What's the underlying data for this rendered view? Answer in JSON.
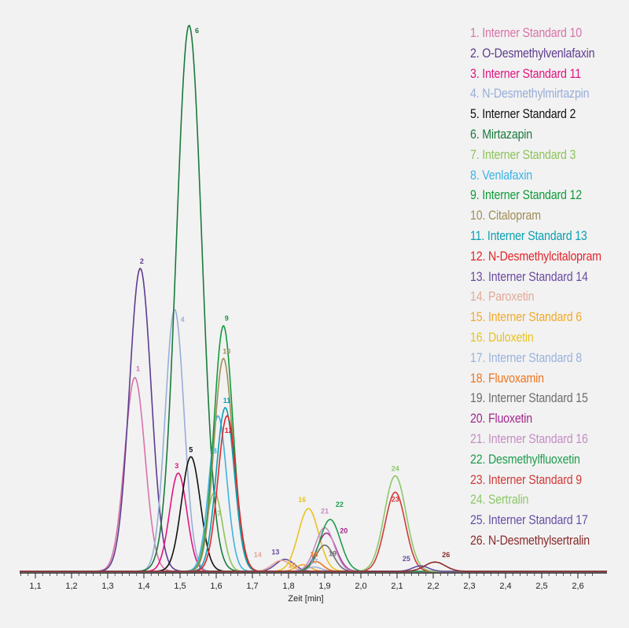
{
  "chart_data": {
    "type": "line",
    "title": "",
    "xlabel": "Zeit [min]",
    "ylabel": "",
    "xlim": [
      1.05,
      2.65
    ],
    "ylim": [
      0,
      100
    ],
    "grid": false,
    "legend_placement": "right",
    "x_ticks": [
      "1,1",
      "1,2",
      "1,3",
      "1,4",
      "1,5",
      "1,6",
      "1,7",
      "1,8",
      "1,9",
      "2,0",
      "2,1",
      "2,2",
      "2,3",
      "2,4",
      "2,5",
      "2,6"
    ],
    "x_tick_values": [
      1.1,
      1.2,
      1.3,
      1.4,
      1.5,
      1.6,
      1.7,
      1.8,
      1.9,
      2.0,
      2.1,
      2.2,
      2.3,
      2.4,
      2.5,
      2.6
    ],
    "series": [
      {
        "num": "1",
        "name": "Interner Standard 10",
        "color": "#d873a8",
        "rt": 1.375,
        "height": 35.5,
        "sigma": 0.028
      },
      {
        "num": "2",
        "name": "O-Desmethylvenlafaxin",
        "color": "#5d3c8f",
        "rt": 1.39,
        "height": 55.5,
        "sigma": 0.03
      },
      {
        "num": "3",
        "name": "Interner Standard 11",
        "color": "#e0157f",
        "rt": 1.495,
        "height": 18.0,
        "sigma": 0.024
      },
      {
        "num": "4",
        "name": "N-Desmethylmirtazpin",
        "color": "#98add8",
        "rt": 1.485,
        "height": 48.0,
        "sigma": 0.026
      },
      {
        "num": "5",
        "name": "Interner Standard 2",
        "color": "#111111",
        "rt": 1.53,
        "height": 21.0,
        "sigma": 0.026
      },
      {
        "num": "6",
        "name": "Mirtazapin",
        "color": "#1a7a3c",
        "rt": 1.525,
        "height": 100.0,
        "sigma": 0.035
      },
      {
        "num": "7",
        "name": "Interner Standard 3",
        "color": "#8ec35b",
        "rt": 1.595,
        "height": 14.5,
        "sigma": 0.022
      },
      {
        "num": "8",
        "name": "Venlafaxin",
        "color": "#3cb3e3",
        "rt": 1.605,
        "height": 28.5,
        "sigma": 0.024
      },
      {
        "num": "9",
        "name": "Interner Standard 12",
        "color": "#119a3b",
        "rt": 1.62,
        "height": 45.0,
        "sigma": 0.026
      },
      {
        "num": "10",
        "name": "Citalopram",
        "color": "#a08d58",
        "rt": 1.62,
        "height": 39.0,
        "sigma": 0.026
      },
      {
        "num": "11",
        "name": "Interner Standard 13",
        "color": "#0aa0b0",
        "rt": 1.625,
        "height": 30.0,
        "sigma": 0.025
      },
      {
        "num": "12",
        "name": "N-Desmethylcitalopram",
        "color": "#e3242b",
        "rt": 1.63,
        "height": 28.5,
        "sigma": 0.025
      },
      {
        "num": "13",
        "name": "Interner Standard 14",
        "color": "#6a4aa0",
        "rt": 1.79,
        "height": 2.2,
        "sigma": 0.025
      },
      {
        "num": "14",
        "name": "Paroxetin",
        "color": "#e3a899",
        "rt": 1.78,
        "height": 2.0,
        "sigma": 0.025
      },
      {
        "num": "15",
        "name": "Interner Standard 6",
        "color": "#f1a92b",
        "rt": 1.84,
        "height": 1.2,
        "sigma": 0.02
      },
      {
        "num": "16",
        "name": "Duloxetin",
        "color": "#e8c320",
        "rt": 1.855,
        "height": 11.5,
        "sigma": 0.028
      },
      {
        "num": "17",
        "name": "Interner Standard 8",
        "color": "#9bb2dc",
        "rt": 1.87,
        "height": 0.8,
        "sigma": 0.02
      },
      {
        "num": "18",
        "name": "Fluvoxamin",
        "color": "#f0741f",
        "rt": 1.875,
        "height": 1.8,
        "sigma": 0.02
      },
      {
        "num": "19",
        "name": "Interner Standard 15",
        "color": "#6d6d6d",
        "rt": 1.9,
        "height": 4.8,
        "sigma": 0.024
      },
      {
        "num": "20",
        "name": "Fluoxetin",
        "color": "#a2278d",
        "rt": 1.905,
        "height": 7.0,
        "sigma": 0.026
      },
      {
        "num": "21",
        "name": "Interner Standard 16",
        "color": "#c48ec4",
        "rt": 1.9,
        "height": 8.0,
        "sigma": 0.026
      },
      {
        "num": "22",
        "name": "Desmethylfluoxetin",
        "color": "#1f9c4d",
        "rt": 1.915,
        "height": 9.5,
        "sigma": 0.028
      },
      {
        "num": "23",
        "name": "Interner Standard 9",
        "color": "#d23a3a",
        "rt": 2.095,
        "height": 14.5,
        "sigma": 0.028
      },
      {
        "num": "24",
        "name": "Sertralin",
        "color": "#8cc86a",
        "rt": 2.095,
        "height": 17.5,
        "sigma": 0.03
      },
      {
        "num": "25",
        "name": "Interner Standard 17",
        "color": "#6650a5",
        "rt": 2.165,
        "height": 1.0,
        "sigma": 0.022
      },
      {
        "num": "26",
        "name": "N-Desmethylsertralin",
        "color": "#8b2a2a",
        "rt": 2.205,
        "height": 1.7,
        "sigma": 0.028
      }
    ]
  },
  "legend": {
    "items": [
      {
        "text": "1. Interner Standard 10",
        "color": "#d873a8"
      },
      {
        "text": "2. O-Desmethylvenlafaxin",
        "color": "#5d3c8f"
      },
      {
        "text": "3. Interner Standard 11",
        "color": "#e0157f"
      },
      {
        "text": "4. N-Desmethylmirtazpin",
        "color": "#98add8"
      },
      {
        "text": "5. Interner Standard 2",
        "color": "#111111"
      },
      {
        "text": "6. Mirtazapin",
        "color": "#1a7a3c"
      },
      {
        "text": "7. Interner Standard 3",
        "color": "#8ec35b"
      },
      {
        "text": "8. Venlafaxin",
        "color": "#3cb3e3"
      },
      {
        "text": "9. Interner Standard 12",
        "color": "#119a3b"
      },
      {
        "text": "10. Citalopram",
        "color": "#a08d58"
      },
      {
        "text": "11. Interner Standard 13",
        "color": "#0aa0b0"
      },
      {
        "text": "12. N-Desmethylcitalopram",
        "color": "#e3242b"
      },
      {
        "text": "13. Interner Standard 14",
        "color": "#6a4aa0"
      },
      {
        "text": "14. Paroxetin",
        "color": "#e3a899"
      },
      {
        "text": "15. Interner Standard 6",
        "color": "#f1a92b"
      },
      {
        "text": "16. Duloxetin",
        "color": "#e8c320"
      },
      {
        "text": "17. Interner Standard 8",
        "color": "#9bb2dc"
      },
      {
        "text": "18. Fluvoxamin",
        "color": "#f0741f"
      },
      {
        "text": "19. Interner Standard 15",
        "color": "#6d6d6d"
      },
      {
        "text": "20. Fluoxetin",
        "color": "#a2278d"
      },
      {
        "text": "21. Interner Standard 16",
        "color": "#c48ec4"
      },
      {
        "text": "22. Desmethylfluoxetin",
        "color": "#1f9c4d"
      },
      {
        "text": "23. Interner Standard 9",
        "color": "#d23a3a"
      },
      {
        "text": "24. Sertralin",
        "color": "#8cc86a"
      },
      {
        "text": "25. Interner Standard 17",
        "color": "#6650a5"
      },
      {
        "text": "26. N-Desmethylsertralin",
        "color": "#8b2a2a"
      }
    ]
  }
}
